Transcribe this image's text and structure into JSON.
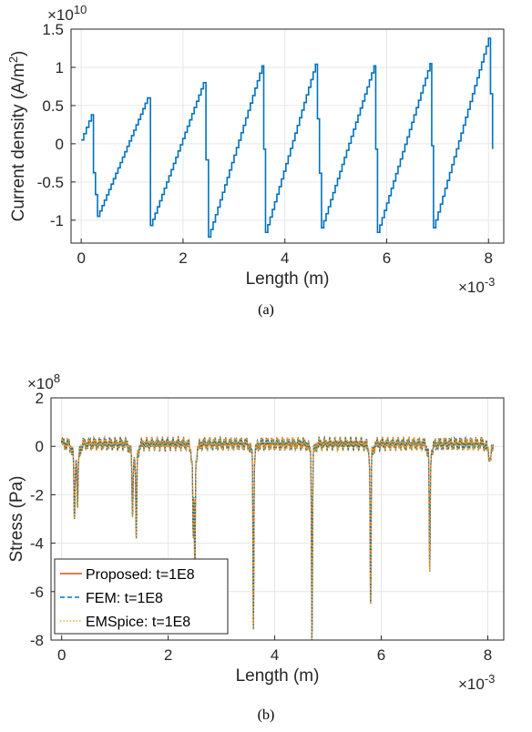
{
  "chart_data": [
    {
      "type": "line",
      "panel_label": "(a)",
      "xlabel": "Length (m)",
      "ylabel": "Current density (A/m²)",
      "ylabel_main": "Current density (A/m",
      "ylabel_sup": "2",
      "ylabel_end": ")",
      "x_exponent_text": "×10",
      "x_exponent_pow": "-3",
      "y_exponent_text": "×10",
      "y_exponent_pow": "10",
      "xlim": [
        -0.2,
        8.3
      ],
      "ylim": [
        -1.3,
        1.5
      ],
      "x_ticks": [
        0,
        2,
        4,
        6,
        8
      ],
      "x_tick_labels": [
        "0",
        "2",
        "4",
        "6",
        "8"
      ],
      "y_ticks": [
        -1,
        -0.5,
        0,
        0.5,
        1,
        1.5
      ],
      "y_tick_labels": [
        "-1",
        "-0.5",
        "0",
        "0.5",
        "1",
        "1.5"
      ],
      "grid": true,
      "series": [
        {
          "color": "#0072BD",
          "style": "step",
          "points": [
            [
              0,
              0.05
            ],
            [
              0.2,
              0.38
            ],
            [
              0.24,
              -0.38
            ],
            [
              0.32,
              -0.95
            ],
            [
              1.3,
              0.6
            ],
            [
              1.36,
              -1.07
            ],
            [
              2.4,
              0.8
            ],
            [
              2.5,
              -1.22
            ],
            [
              3.55,
              1.02
            ],
            [
              3.62,
              -1.16
            ],
            [
              4.6,
              1.04
            ],
            [
              4.72,
              -1.1
            ],
            [
              5.75,
              1.02
            ],
            [
              5.82,
              -1.16
            ],
            [
              6.85,
              1.05
            ],
            [
              6.92,
              -1.1
            ],
            [
              8.0,
              1.38
            ],
            [
              8.08,
              -0.07
            ]
          ]
        }
      ]
    },
    {
      "type": "line",
      "panel_label": "(b)",
      "xlabel": "Length (m)",
      "ylabel": "Stress (Pa)",
      "x_exponent_text": "×10",
      "x_exponent_pow": "-3",
      "y_exponent_text": "×10",
      "y_exponent_pow": "8",
      "xlim": [
        -0.2,
        8.3
      ],
      "ylim": [
        -8,
        2
      ],
      "x_ticks": [
        0,
        2,
        4,
        6,
        8
      ],
      "x_tick_labels": [
        "0",
        "2",
        "4",
        "6",
        "8"
      ],
      "y_ticks": [
        -8,
        -6,
        -4,
        -2,
        0,
        2
      ],
      "y_tick_labels": [
        "-8",
        "-6",
        "-4",
        "-2",
        "0",
        "2"
      ],
      "grid": true,
      "legend_position": "bottom-left",
      "baseline": 0.1,
      "dips": [
        {
          "x": 0.24,
          "min": -2.7
        },
        {
          "x": 0.3,
          "min": -2.1
        },
        {
          "x": 1.33,
          "min": -2.5
        },
        {
          "x": 1.4,
          "min": -3.5
        },
        {
          "x": 2.47,
          "min": -2.9
        },
        {
          "x": 2.5,
          "min": -4.5
        },
        {
          "x": 3.6,
          "min": -7.0
        },
        {
          "x": 4.7,
          "min": -7.8
        },
        {
          "x": 5.8,
          "min": -6.4
        },
        {
          "x": 6.91,
          "min": -5.0
        },
        {
          "x": 8.04,
          "min": -0.1
        }
      ],
      "series": [
        {
          "name": "Proposed: t=1E8",
          "color": "#D95319",
          "dash": "solid"
        },
        {
          "name": "FEM: t=1E8",
          "color": "#0072BD",
          "dash": "dashed"
        },
        {
          "name": "EMSpice: t=1E8",
          "color": "#EDB120",
          "dash": "dotted"
        }
      ]
    }
  ]
}
